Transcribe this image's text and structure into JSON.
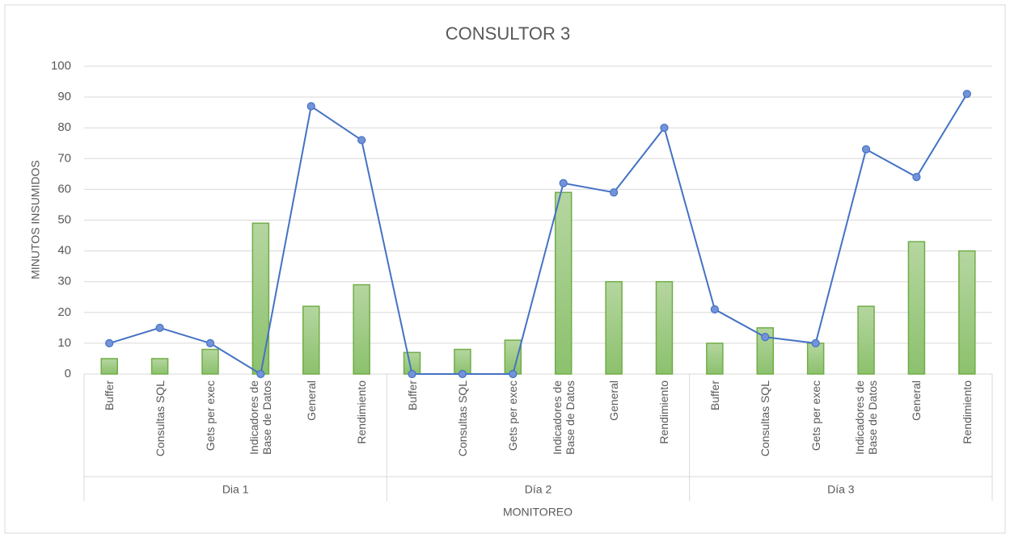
{
  "chart_data": {
    "type": "bar-line",
    "title": "CONSULTOR  3",
    "y_label": "MINUTOS INSUMIDOS",
    "x_label": "MONITOREO",
    "categories": [
      "Buffer",
      "Consultas SQL",
      "Gets per exec",
      "Indicadores de Base de Datos",
      "General",
      "Rendimiento",
      "Buffer",
      "Consultas SQL",
      "Gets per exec",
      "Indicadores de Base de Datos",
      "General",
      "Rendimiento",
      "Buffer",
      "Consultas SQL",
      "Gets per exec",
      "Indicadores de Base de Datos",
      "General",
      "Rendimiento"
    ],
    "groups": [
      "Dia 1",
      "Día 2",
      "Día 3"
    ],
    "series": [
      {
        "type": "bar",
        "color": "#70ad47",
        "values": [
          5,
          5,
          8,
          49,
          22,
          29,
          7,
          8,
          11,
          59,
          30,
          30,
          10,
          15,
          10,
          22,
          43,
          40
        ]
      },
      {
        "type": "line",
        "color": "#4472c4",
        "values": [
          10,
          15,
          10,
          0,
          87,
          76,
          0,
          0,
          0,
          62,
          59,
          80,
          21,
          12,
          10,
          73,
          64,
          91
        ]
      }
    ],
    "ylim": [
      0,
      100
    ],
    "yticks": [
      0,
      10,
      20,
      30,
      40,
      50,
      60,
      70,
      80,
      90,
      100
    ],
    "grid": true
  }
}
